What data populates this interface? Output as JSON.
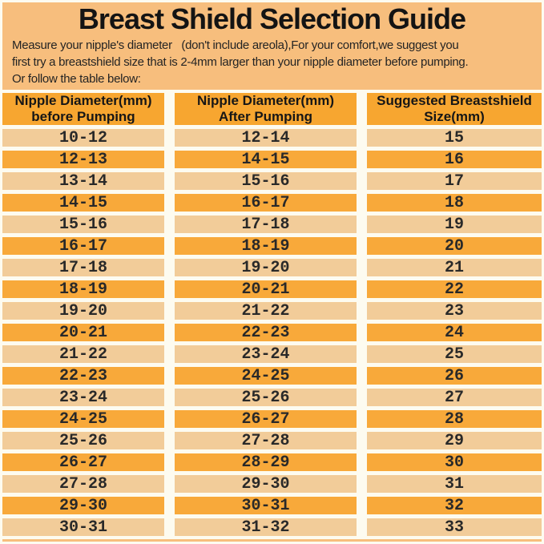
{
  "page": {
    "title": "Breast Shield Selection Guide",
    "intro_lines": [
      "Measure your nipple's diameter   (don't include areola),For your comfort,we suggest you",
      "first try a breastshield size that is 2-4mm larger than your nipple diameter before pumping.",
      "Or follow the table below:"
    ]
  },
  "colors": {
    "background": "#F7BE7D",
    "separator": "#FDFBF0",
    "header": "#F7A630",
    "row_light": "#F2CC99",
    "row_dark": "#F8A93A",
    "text": "#1B1B1B"
  },
  "table": {
    "headers": [
      {
        "line1": "Nipple Diameter(mm)",
        "line2": "before Pumping"
      },
      {
        "line1": "Nipple Diameter(mm)",
        "line2": "After Pumping"
      },
      {
        "line1": "Suggested Breastshield",
        "line2": "Size(mm)"
      }
    ],
    "rows": [
      [
        "10-12",
        "12-14",
        "15"
      ],
      [
        "12-13",
        "14-15",
        "16"
      ],
      [
        "13-14",
        "15-16",
        "17"
      ],
      [
        "14-15",
        "16-17",
        "18"
      ],
      [
        "15-16",
        "17-18",
        "19"
      ],
      [
        "16-17",
        "18-19",
        "20"
      ],
      [
        "17-18",
        "19-20",
        "21"
      ],
      [
        "18-19",
        "20-21",
        "22"
      ],
      [
        "19-20",
        "21-22",
        "23"
      ],
      [
        "20-21",
        "22-23",
        "24"
      ],
      [
        "21-22",
        "23-24",
        "25"
      ],
      [
        "22-23",
        "24-25",
        "26"
      ],
      [
        "23-24",
        "25-26",
        "27"
      ],
      [
        "24-25",
        "26-27",
        "28"
      ],
      [
        "25-26",
        "27-28",
        "29"
      ],
      [
        "26-27",
        "28-29",
        "30"
      ],
      [
        "27-28",
        "29-30",
        "31"
      ],
      [
        "29-30",
        "30-31",
        "32"
      ],
      [
        "30-31",
        "31-32",
        "33"
      ]
    ]
  }
}
